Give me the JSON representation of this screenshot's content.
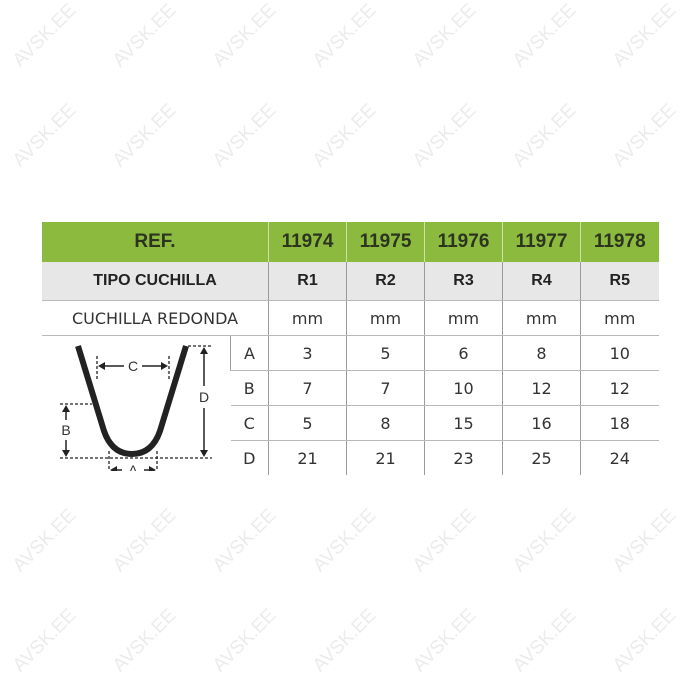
{
  "watermark": "AVSK.EE",
  "colors": {
    "header_green": "#8cba3f",
    "subheader_grey": "#e7e7e7"
  },
  "table": {
    "ref_label": "REF.",
    "refs": [
      "11974",
      "11975",
      "11976",
      "11977",
      "11978"
    ],
    "type_label": "TIPO CUCHILLA",
    "types": [
      "R1",
      "R2",
      "R3",
      "R4",
      "R5"
    ],
    "unit_label": "CUCHILLA REDONDA",
    "units": [
      "mm",
      "mm",
      "mm",
      "mm",
      "mm"
    ],
    "dimensions": [
      {
        "name": "A",
        "values": [
          "3",
          "5",
          "6",
          "8",
          "10"
        ]
      },
      {
        "name": "B",
        "values": [
          "7",
          "7",
          "10",
          "12",
          "12"
        ]
      },
      {
        "name": "C",
        "values": [
          "5",
          "8",
          "15",
          "16",
          "18"
        ]
      },
      {
        "name": "D",
        "values": [
          "21",
          "21",
          "23",
          "25",
          "24"
        ]
      }
    ]
  },
  "diagram": {
    "labels": {
      "a": "A",
      "b": "B",
      "c": "C",
      "d": "D"
    }
  }
}
